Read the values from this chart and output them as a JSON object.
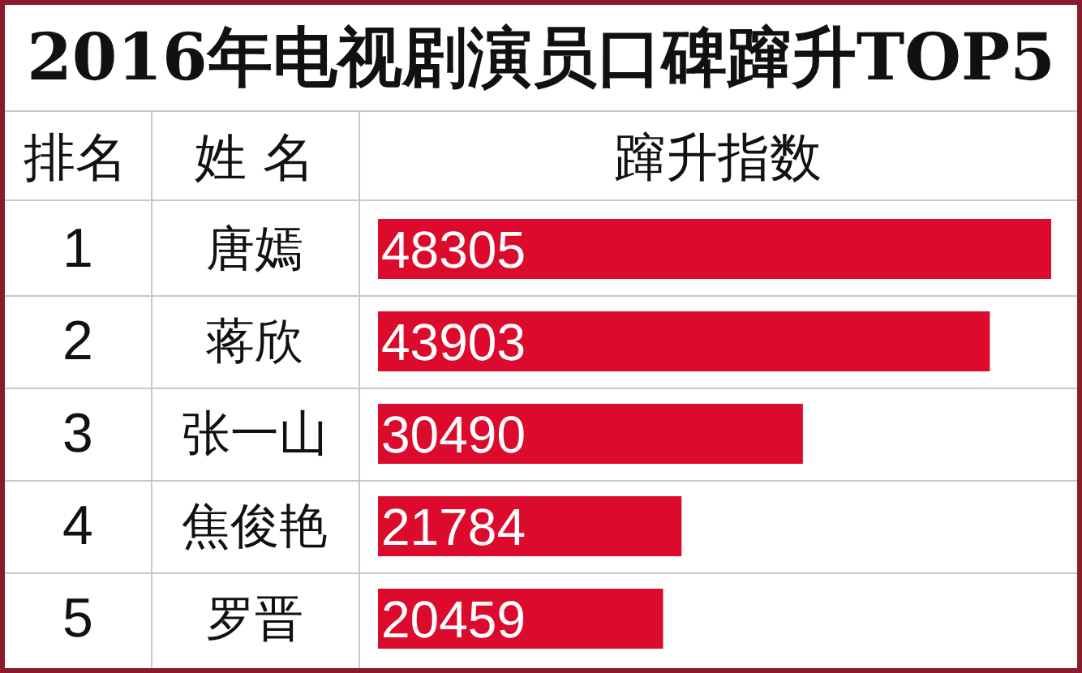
{
  "chart_data": {
    "type": "bar",
    "orientation": "horizontal",
    "title": "2016年电视剧演员口碑蹿升TOP5",
    "xlabel": "蹿升指数",
    "ylabel": "姓 名",
    "categories": [
      "唐嫣",
      "蒋欣",
      "张一山",
      "焦俊艳",
      "罗晋"
    ],
    "values": [
      48305,
      43903,
      30490,
      21784,
      20459
    ],
    "color": "#dc0a2c",
    "data_labels": true,
    "annotations": [
      "排名",
      "1",
      "2",
      "3",
      "4",
      "5"
    ]
  }
}
